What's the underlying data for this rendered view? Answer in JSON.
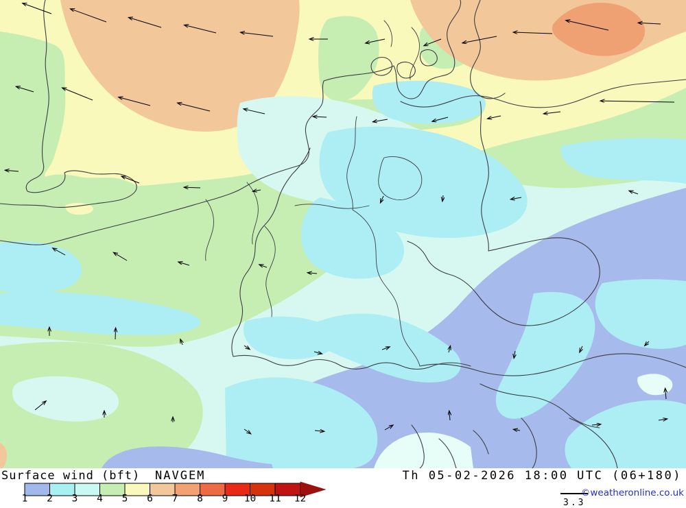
{
  "header": {
    "product_label": "Surface wind (bft)",
    "model_label": "NAVGEM",
    "timestamp": "Th 05-02-2026 18:00 UTC (06+180)",
    "copyright": "©weatheronline.co.uk",
    "arrow_scale_note": "3.3"
  },
  "legend": {
    "tick_labels": [
      "1",
      "2",
      "3",
      "4",
      "5",
      "6",
      "7",
      "8",
      "9",
      "10",
      "11",
      "12"
    ],
    "segment_colors": [
      "#a0b8ec",
      "#a8f0f2",
      "#c9f9f3",
      "#c6eeb2",
      "#f8f9ba",
      "#f2c79a",
      "#f1a173",
      "#ee6a44",
      "#e92a16",
      "#d5330e",
      "#c01414"
    ],
    "overflow_arrow_color": "#9c1010",
    "outline_color": "#000000"
  },
  "map": {
    "palette": {
      "bft_1_2": "#a6baec",
      "bft_2_3": "#aceef4",
      "bft_3_4": "#d7f8f1",
      "bft_4_5": "#c6eeb2",
      "bft_5_6": "#f8f9ba",
      "bft_6_7": "#f2c79a",
      "bft_7_8": "#efa173",
      "pale_spot": "#e6fdf8",
      "border": "#3c3c44",
      "arrow": "#000000"
    },
    "wind_arrows": [
      [
        75,
        20,
        200,
        45
      ],
      [
        155,
        32,
        200,
        56
      ],
      [
        235,
        40,
        197,
        50
      ],
      [
        315,
        48,
        194,
        48
      ],
      [
        398,
        53,
        187,
        48
      ],
      [
        478,
        57,
        180,
        27
      ],
      [
        561,
        57,
        168,
        29
      ],
      [
        643,
        57,
        159,
        27
      ],
      [
        887,
        44,
        193,
        64
      ],
      [
        963,
        35,
        183,
        33
      ],
      [
        805,
        49,
        182,
        57
      ],
      [
        724,
        53,
        169,
        51
      ],
      [
        49,
        134,
        197,
        27
      ],
      [
        135,
        146,
        202,
        48
      ],
      [
        219,
        154,
        195,
        48
      ],
      [
        306,
        162,
        194,
        49
      ],
      [
        386,
        166,
        193,
        32
      ],
      [
        476,
        171,
        183,
        20
      ],
      [
        565,
        174,
        170,
        22
      ],
      [
        653,
        171,
        165,
        24
      ],
      [
        983,
        149,
        181,
        108
      ],
      [
        730,
        169,
        168,
        20
      ],
      [
        817,
        163,
        173,
        25
      ],
      [
        203,
        267,
        201,
        28
      ],
      [
        292,
        274,
        182,
        24
      ],
      [
        380,
        277,
        170,
        12
      ],
      [
        559,
        286,
        115,
        11
      ],
      [
        646,
        285,
        97,
        9
      ],
      [
        760,
        288,
        170,
        16
      ],
      [
        930,
        283,
        200,
        14
      ],
      [
        27,
        250,
        185,
        20
      ],
      [
        95,
        372,
        209,
        21
      ],
      [
        185,
        380,
        211,
        23
      ],
      [
        276,
        387,
        197,
        17
      ],
      [
        389,
        390,
        200,
        12
      ],
      [
        462,
        399,
        185,
        14
      ],
      [
        72,
        490,
        270,
        13
      ],
      [
        168,
        495,
        272,
        17
      ],
      [
        266,
        503,
        249,
        9
      ],
      [
        51,
        598,
        321,
        21
      ],
      [
        152,
        609,
        270,
        10
      ],
      [
        252,
        616,
        270,
        8
      ],
      [
        356,
        504,
        35,
        10
      ],
      [
        458,
        513,
        15,
        12
      ],
      [
        557,
        510,
        340,
        12
      ],
      [
        654,
        514,
        285,
        10
      ],
      [
        356,
        626,
        35,
        12
      ],
      [
        459,
        628,
        5,
        14
      ],
      [
        561,
        627,
        330,
        14
      ],
      [
        751,
        512,
        100,
        11
      ],
      [
        849,
        505,
        115,
        10
      ],
      [
        946,
        498,
        135,
        9
      ],
      [
        758,
        628,
        190,
        10
      ],
      [
        863,
        620,
        355,
        13
      ],
      [
        960,
        613,
        351,
        13
      ],
      [
        656,
        613,
        265,
        14
      ],
      [
        971,
        582,
        265,
        16
      ]
    ]
  }
}
